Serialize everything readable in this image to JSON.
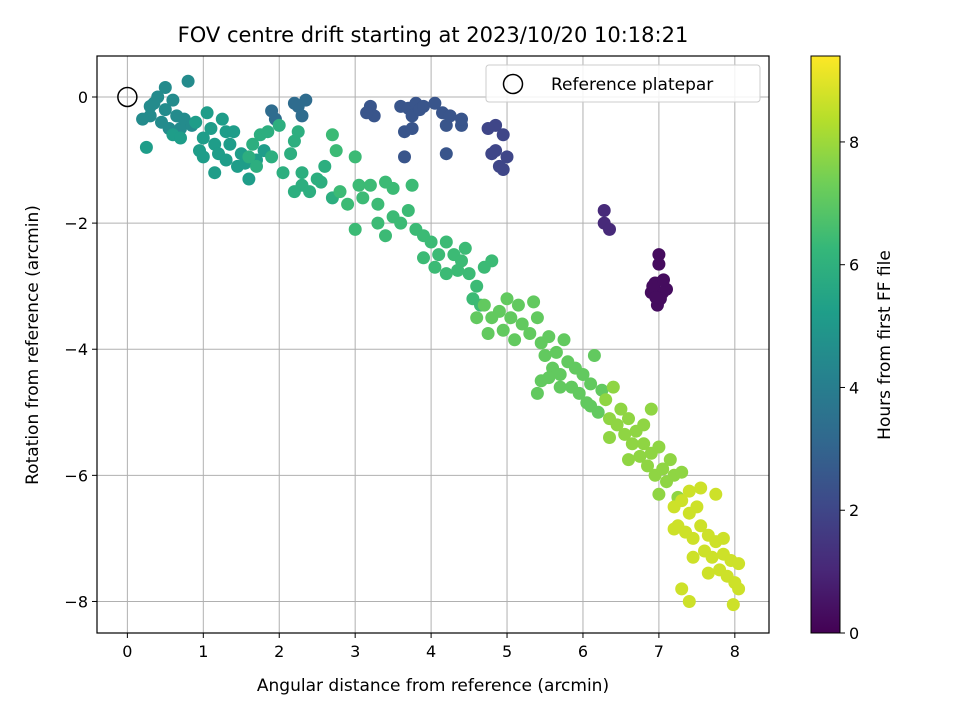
{
  "chart_data": {
    "type": "scatter",
    "title": "FOV centre drift starting at 2023/10/20 10:18:21",
    "xlabel": "Angular distance from reference (arcmin)",
    "ylabel": "Rotation from reference (arcmin)",
    "xlim": [
      -0.4,
      8.45
    ],
    "ylim": [
      -8.5,
      0.65
    ],
    "xticks": [
      0,
      1,
      2,
      3,
      4,
      5,
      6,
      7,
      8
    ],
    "yticks": [
      0,
      -2,
      -4,
      -6,
      -8
    ],
    "grid": true,
    "legend": {
      "position": "top-right",
      "entries": [
        "Reference platepar"
      ]
    },
    "reference_point": {
      "x": 0,
      "y": 0,
      "label": "Reference platepar"
    },
    "colorbar": {
      "label": "Hours from first FF file",
      "colormap": "viridis",
      "range": [
        0,
        9.4
      ],
      "ticks": [
        0,
        2,
        4,
        6,
        8
      ]
    },
    "colormap_stops": [
      "#440154",
      "#482878",
      "#3e4989",
      "#31688e",
      "#26828e",
      "#1f9e89",
      "#35b779",
      "#6ece58",
      "#b5de2b",
      "#fde725"
    ],
    "clusters": [
      {
        "hours": 0.3,
        "points": [
          [
            6.95,
            -2.95
          ],
          [
            7.0,
            -2.5
          ],
          [
            7.05,
            -3.1
          ],
          [
            6.98,
            -3.3
          ],
          [
            7.1,
            -3.05
          ],
          [
            6.9,
            -3.1
          ],
          [
            7.0,
            -2.65
          ],
          [
            7.02,
            -3.2
          ],
          [
            6.92,
            -3.0
          ],
          [
            7.06,
            -2.9
          ],
          [
            6.96,
            -3.18
          ]
        ]
      },
      {
        "hours": 1.1,
        "points": [
          [
            6.28,
            -1.8
          ],
          [
            6.28,
            -2.0
          ],
          [
            6.35,
            -2.1
          ]
        ]
      },
      {
        "hours": 2.0,
        "points": [
          [
            4.85,
            -0.45
          ],
          [
            4.95,
            -0.6
          ],
          [
            4.8,
            -0.9
          ],
          [
            4.9,
            -1.1
          ],
          [
            5.0,
            -0.95
          ],
          [
            4.95,
            -1.15
          ],
          [
            4.85,
            -0.85
          ],
          [
            4.75,
            -0.5
          ]
        ]
      },
      {
        "hours": 2.5,
        "points": [
          [
            3.6,
            -0.15
          ],
          [
            3.7,
            -0.18
          ],
          [
            3.8,
            -0.1
          ],
          [
            3.75,
            -0.3
          ],
          [
            3.65,
            -0.55
          ],
          [
            3.75,
            -0.5
          ],
          [
            3.85,
            -0.2
          ],
          [
            3.9,
            -0.15
          ],
          [
            4.05,
            -0.1
          ],
          [
            4.15,
            -0.25
          ],
          [
            4.2,
            -0.45
          ],
          [
            4.4,
            -0.45
          ],
          [
            4.4,
            -0.35
          ],
          [
            4.2,
            -0.9
          ],
          [
            3.65,
            -0.95
          ],
          [
            3.2,
            -0.15
          ],
          [
            3.25,
            -0.3
          ],
          [
            3.15,
            -0.25
          ],
          [
            4.25,
            -0.3
          ]
        ]
      },
      {
        "hours": 3.3,
        "points": [
          [
            1.9,
            -0.22
          ],
          [
            2.2,
            -0.1
          ],
          [
            2.35,
            -0.05
          ],
          [
            2.25,
            -0.15
          ],
          [
            2.3,
            -0.3
          ],
          [
            1.95,
            -0.35
          ]
        ]
      },
      {
        "hours": 4.5,
        "points": [
          [
            0.5,
            0.15
          ],
          [
            0.4,
            0.0
          ],
          [
            0.35,
            -0.1
          ],
          [
            0.5,
            -0.2
          ],
          [
            0.3,
            -0.3
          ],
          [
            0.45,
            -0.4
          ],
          [
            0.55,
            -0.5
          ],
          [
            0.2,
            -0.35
          ],
          [
            0.3,
            -0.15
          ],
          [
            0.6,
            -0.05
          ],
          [
            0.65,
            -0.3
          ],
          [
            0.7,
            -0.5
          ],
          [
            0.8,
            0.25
          ],
          [
            0.75,
            -0.35
          ],
          [
            0.85,
            -0.45
          ]
        ]
      },
      {
        "hours": 5.2,
        "points": [
          [
            0.6,
            -0.6
          ],
          [
            0.25,
            -0.8
          ],
          [
            0.7,
            -0.65
          ],
          [
            0.9,
            -0.4
          ],
          [
            0.95,
            -0.85
          ],
          [
            1.0,
            -0.65
          ],
          [
            1.1,
            -0.5
          ],
          [
            1.05,
            -0.25
          ],
          [
            1.15,
            -0.75
          ],
          [
            1.2,
            -0.9
          ],
          [
            1.3,
            -0.55
          ],
          [
            1.15,
            -1.2
          ],
          [
            1.35,
            -0.75
          ],
          [
            1.5,
            -0.9
          ],
          [
            1.6,
            -1.3
          ],
          [
            1.45,
            -1.1
          ],
          [
            1.7,
            -1.0
          ],
          [
            1.8,
            -0.85
          ],
          [
            1.3,
            -1.0
          ],
          [
            1.0,
            -0.95
          ],
          [
            1.55,
            -1.05
          ],
          [
            1.25,
            -0.35
          ],
          [
            1.4,
            -0.55
          ]
        ]
      },
      {
        "hours": 5.9,
        "points": [
          [
            1.75,
            -0.6
          ],
          [
            1.85,
            -0.55
          ],
          [
            1.65,
            -0.75
          ],
          [
            1.7,
            -1.1
          ],
          [
            1.9,
            -0.95
          ],
          [
            1.6,
            -0.95
          ],
          [
            2.05,
            -1.2
          ],
          [
            2.15,
            -0.9
          ],
          [
            2.2,
            -0.7
          ],
          [
            2.25,
            -0.55
          ],
          [
            2.3,
            -1.4
          ],
          [
            2.2,
            -1.5
          ],
          [
            2.4,
            -1.5
          ],
          [
            2.5,
            -1.3
          ],
          [
            2.6,
            -1.1
          ],
          [
            2.55,
            -1.35
          ],
          [
            2.7,
            -1.6
          ],
          [
            2.3,
            -1.2
          ],
          [
            2.0,
            -0.45
          ]
        ]
      },
      {
        "hours": 6.4,
        "points": [
          [
            2.7,
            -0.6
          ],
          [
            2.75,
            -0.85
          ],
          [
            2.8,
            -1.5
          ],
          [
            2.9,
            -1.7
          ],
          [
            3.0,
            -0.95
          ],
          [
            3.05,
            -1.4
          ],
          [
            3.1,
            -1.6
          ],
          [
            3.0,
            -2.1
          ],
          [
            3.2,
            -1.4
          ],
          [
            3.3,
            -1.7
          ],
          [
            3.4,
            -1.35
          ],
          [
            3.5,
            -1.45
          ],
          [
            3.3,
            -2.0
          ],
          [
            3.4,
            -2.2
          ],
          [
            3.5,
            -1.9
          ],
          [
            3.6,
            -2.0
          ],
          [
            3.7,
            -1.8
          ],
          [
            3.75,
            -1.4
          ],
          [
            3.8,
            -2.1
          ],
          [
            3.9,
            -2.2
          ],
          [
            4.0,
            -2.3
          ],
          [
            4.1,
            -2.5
          ],
          [
            3.9,
            -2.55
          ],
          [
            4.05,
            -2.7
          ],
          [
            4.2,
            -2.3
          ],
          [
            4.3,
            -2.5
          ],
          [
            4.4,
            -2.6
          ],
          [
            4.2,
            -2.8
          ],
          [
            4.35,
            -2.75
          ],
          [
            4.45,
            -2.4
          ],
          [
            4.5,
            -2.8
          ],
          [
            4.6,
            -3.0
          ],
          [
            4.7,
            -2.7
          ],
          [
            4.8,
            -2.6
          ],
          [
            4.55,
            -3.2
          ],
          [
            4.65,
            -3.3
          ]
        ]
      },
      {
        "hours": 7.1,
        "points": [
          [
            4.6,
            -3.5
          ],
          [
            4.7,
            -3.3
          ],
          [
            4.75,
            -3.75
          ],
          [
            4.8,
            -3.5
          ],
          [
            4.9,
            -3.4
          ],
          [
            4.95,
            -3.7
          ],
          [
            5.0,
            -3.2
          ],
          [
            5.05,
            -3.5
          ],
          [
            5.1,
            -3.85
          ],
          [
            5.15,
            -3.3
          ],
          [
            5.2,
            -3.6
          ],
          [
            5.3,
            -3.75
          ],
          [
            5.35,
            -3.25
          ],
          [
            5.4,
            -3.5
          ],
          [
            5.45,
            -3.9
          ],
          [
            5.5,
            -4.1
          ],
          [
            5.55,
            -3.8
          ],
          [
            5.6,
            -4.3
          ],
          [
            5.45,
            -4.5
          ],
          [
            5.65,
            -4.05
          ],
          [
            5.7,
            -4.4
          ],
          [
            5.75,
            -3.85
          ],
          [
            5.8,
            -4.2
          ],
          [
            5.85,
            -4.6
          ],
          [
            5.9,
            -4.3
          ],
          [
            5.95,
            -4.7
          ],
          [
            6.0,
            -4.4
          ],
          [
            6.05,
            -4.85
          ],
          [
            6.1,
            -4.55
          ],
          [
            6.15,
            -4.1
          ],
          [
            6.2,
            -5.0
          ],
          [
            6.25,
            -4.65
          ],
          [
            5.4,
            -4.7
          ],
          [
            5.55,
            -4.45
          ],
          [
            6.1,
            -4.9
          ],
          [
            5.7,
            -4.6
          ]
        ]
      },
      {
        "hours": 7.8,
        "points": [
          [
            6.3,
            -4.8
          ],
          [
            6.35,
            -5.1
          ],
          [
            6.4,
            -4.6
          ],
          [
            6.45,
            -5.2
          ],
          [
            6.5,
            -4.95
          ],
          [
            6.55,
            -5.35
          ],
          [
            6.6,
            -5.1
          ],
          [
            6.65,
            -5.5
          ],
          [
            6.7,
            -5.3
          ],
          [
            6.75,
            -5.7
          ],
          [
            6.8,
            -5.5
          ],
          [
            6.85,
            -5.85
          ],
          [
            6.9,
            -5.65
          ],
          [
            6.95,
            -6.0
          ],
          [
            7.0,
            -5.55
          ],
          [
            7.05,
            -5.9
          ],
          [
            7.1,
            -6.1
          ],
          [
            7.15,
            -5.75
          ],
          [
            7.2,
            -6.0
          ],
          [
            7.25,
            -6.35
          ],
          [
            7.3,
            -5.95
          ],
          [
            6.35,
            -5.4
          ],
          [
            6.6,
            -5.75
          ],
          [
            6.8,
            -5.2
          ],
          [
            7.0,
            -6.3
          ],
          [
            6.9,
            -4.95
          ]
        ]
      },
      {
        "hours": 8.7,
        "points": [
          [
            7.2,
            -6.5
          ],
          [
            7.25,
            -6.8
          ],
          [
            7.3,
            -6.4
          ],
          [
            7.35,
            -6.9
          ],
          [
            7.4,
            -6.6
          ],
          [
            7.45,
            -7.0
          ],
          [
            7.5,
            -6.5
          ],
          [
            7.55,
            -6.8
          ],
          [
            7.6,
            -7.2
          ],
          [
            7.65,
            -6.95
          ],
          [
            7.7,
            -7.3
          ],
          [
            7.75,
            -7.05
          ],
          [
            7.8,
            -7.5
          ],
          [
            7.85,
            -7.25
          ],
          [
            7.9,
            -7.6
          ],
          [
            7.95,
            -7.35
          ],
          [
            8.0,
            -7.7
          ],
          [
            8.05,
            -7.4
          ],
          [
            8.05,
            -7.8
          ],
          [
            7.98,
            -8.05
          ],
          [
            7.3,
            -7.8
          ],
          [
            7.4,
            -8.0
          ],
          [
            7.75,
            -6.3
          ],
          [
            7.55,
            -6.2
          ],
          [
            7.4,
            -6.25
          ],
          [
            7.2,
            -6.85
          ],
          [
            7.45,
            -7.3
          ],
          [
            7.85,
            -7.0
          ],
          [
            7.65,
            -7.55
          ]
        ]
      }
    ]
  }
}
